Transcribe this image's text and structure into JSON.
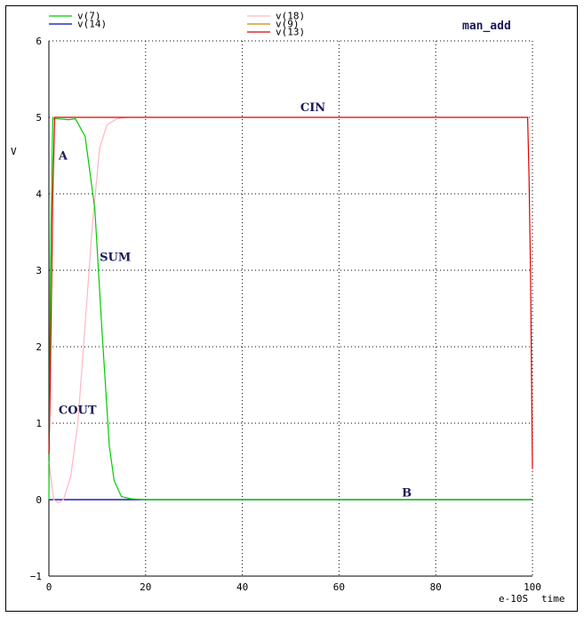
{
  "chart_data": {
    "type": "line",
    "title": "man_add",
    "ylabel": "V",
    "xlabel": "time",
    "x_scale_label": "e-10S",
    "xlim": [
      0,
      100
    ],
    "ylim": [
      -1,
      6
    ],
    "x_ticks": [
      "0",
      "20",
      "40",
      "60",
      "80",
      "100"
    ],
    "y_ticks": [
      "6",
      "5",
      "4",
      "3",
      "2",
      "1",
      "0",
      "−1"
    ],
    "grid": true,
    "legend_position": "top",
    "series": [
      {
        "name": "v(7)",
        "color": "#00cc00",
        "points": [
          [
            0,
            0
          ],
          [
            0.3,
            3.0
          ],
          [
            0.8,
            4.98
          ],
          [
            2,
            4.98
          ],
          [
            4,
            4.97
          ],
          [
            5.5,
            4.98
          ],
          [
            7.5,
            4.75
          ],
          [
            9.5,
            3.8
          ],
          [
            11,
            2.2
          ],
          [
            12.5,
            0.7
          ],
          [
            13.5,
            0.25
          ],
          [
            15,
            0.04
          ],
          [
            17,
            0.01
          ],
          [
            20,
            0
          ],
          [
            100,
            0
          ]
        ]
      },
      {
        "name": "v(14)",
        "color": "#0000cc",
        "points": [
          [
            0,
            0
          ],
          [
            100,
            0
          ]
        ]
      },
      {
        "name": "v(18)",
        "color": "#ffb6c1",
        "points": [
          [
            0,
            0.5
          ],
          [
            1,
            0
          ],
          [
            2,
            -0.04
          ],
          [
            3,
            0
          ],
          [
            4.5,
            0.3
          ],
          [
            6,
            1.0
          ],
          [
            7.5,
            2.3
          ],
          [
            9,
            3.6
          ],
          [
            10.5,
            4.6
          ],
          [
            12,
            4.9
          ],
          [
            14,
            4.98
          ],
          [
            16,
            5.0
          ]
        ]
      },
      {
        "name": "v(9)",
        "color": "#cc8800",
        "points": [
          [
            0,
            0
          ],
          [
            100,
            0
          ]
        ]
      },
      {
        "name": "v(13)",
        "color": "#dd0000",
        "points": [
          [
            0,
            0.6
          ],
          [
            0.2,
            1.2
          ],
          [
            0.5,
            2.5
          ],
          [
            0.8,
            4.0
          ],
          [
            1.2,
            5.0
          ],
          [
            99.0,
            5.0
          ],
          [
            99.3,
            4.2
          ],
          [
            99.6,
            3.0
          ],
          [
            100,
            0.4
          ]
        ]
      }
    ],
    "annotations": [
      {
        "text": "CIN",
        "x": 52,
        "y": 5.08
      },
      {
        "text": "A",
        "x": 2,
        "y": 4.45
      },
      {
        "text": "SUM",
        "x": 10.5,
        "y": 3.12
      },
      {
        "text": "COUT",
        "x": 2,
        "y": 1.12
      },
      {
        "text": "B",
        "x": 73,
        "y": 0.04
      }
    ]
  }
}
